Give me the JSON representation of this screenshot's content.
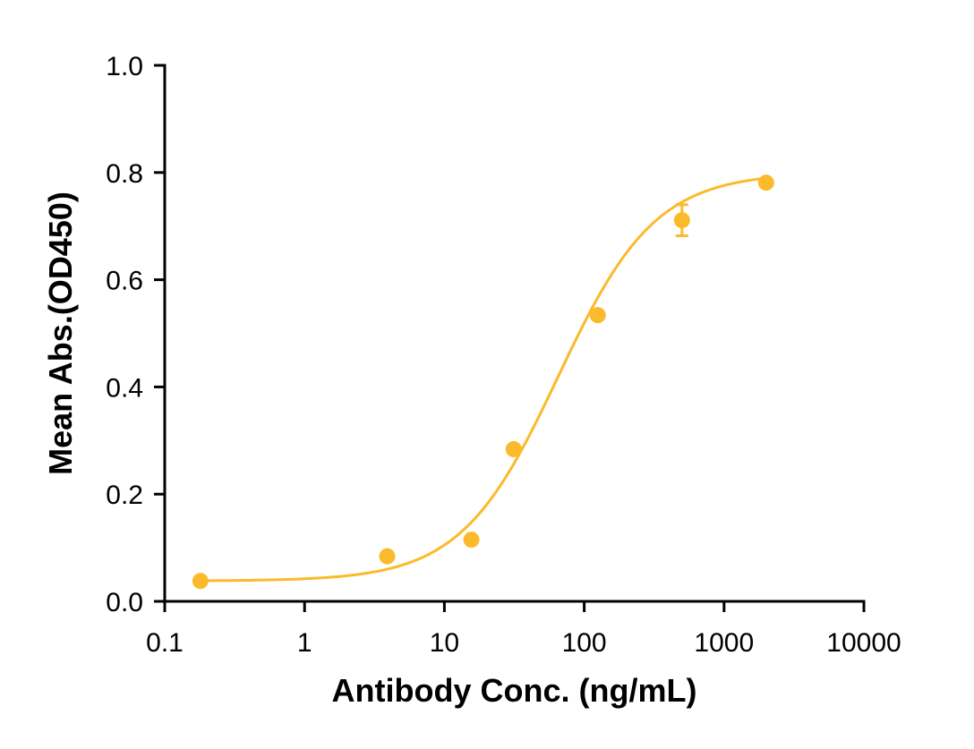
{
  "chart_data": {
    "type": "scatter",
    "title": "",
    "xlabel": "Antibody Conc. (ng/mL)",
    "ylabel": "Mean Abs.(OD450)",
    "x_scale": "log",
    "xlim": [
      0.1,
      10000
    ],
    "ylim": [
      0.0,
      1.0
    ],
    "x_ticks": [
      0.1,
      1,
      10,
      100,
      1000,
      10000
    ],
    "x_tick_labels": [
      "0.1",
      "1",
      "10",
      "100",
      "1000",
      "10000"
    ],
    "y_ticks": [
      0.0,
      0.2,
      0.4,
      0.6,
      0.8,
      1.0
    ],
    "y_tick_labels": [
      "0.0",
      "0.2",
      "0.4",
      "0.6",
      "0.8",
      "1.0"
    ],
    "grid": false,
    "legend": "none",
    "color": "#FBBA2B",
    "series": [
      {
        "points": [
          {
            "x": 0.18,
            "y": 0.038,
            "err": 0
          },
          {
            "x": 3.9,
            "y": 0.084,
            "err": 0
          },
          {
            "x": 15.6,
            "y": 0.115,
            "err": 0
          },
          {
            "x": 31.3,
            "y": 0.284,
            "err": 0
          },
          {
            "x": 125,
            "y": 0.534,
            "err": 0
          },
          {
            "x": 500,
            "y": 0.711,
            "err": 0.029
          },
          {
            "x": 2000,
            "y": 0.781,
            "err": 0
          }
        ],
        "fit": {
          "model": "4PL",
          "bottom": 0.038,
          "top": 0.8,
          "ec50": 65,
          "hill": 1.25,
          "x_range": [
            0.18,
            2000
          ]
        }
      }
    ]
  }
}
